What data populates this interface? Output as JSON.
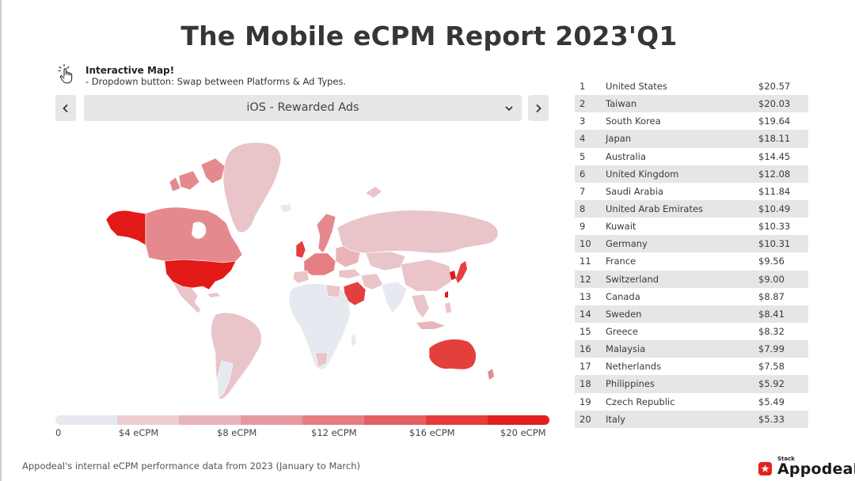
{
  "header": {
    "title": "The Mobile eCPM Report 2023'Q1"
  },
  "hint": {
    "icon": "pointer-hand-icon",
    "title": "Interactive Map!",
    "subtitle": "- Dropdown button: Swap between Platforms & Ad Types."
  },
  "selector": {
    "prev_icon": "chevron-left-icon",
    "next_icon": "chevron-right-icon",
    "dropdown_icon": "chevron-down-icon",
    "selected": "iOS - Rewarded Ads"
  },
  "legend": {
    "labels": [
      "0",
      "$4 eCPM",
      "$8 eCPM",
      "$12 eCPM",
      "$16 eCPM",
      "$20 eCPM"
    ],
    "colors": [
      "#e6e9ef",
      "#eccdd2",
      "#e8b4ba",
      "#e6999f",
      "#e57e82",
      "#e45f60",
      "#e33c3b",
      "#e21f1f"
    ]
  },
  "colors": {
    "no_data": "#e6e9ef",
    "low": "#e9c4c9",
    "mid": "#e48a8f",
    "high": "#e33f3d",
    "top": "#e21a18",
    "brand_red": "#e3231b"
  },
  "ranking": {
    "rows": [
      {
        "rank": "1",
        "country": "United States",
        "value": "$20.57"
      },
      {
        "rank": "2",
        "country": "Taiwan",
        "value": "$20.03"
      },
      {
        "rank": "3",
        "country": "South Korea",
        "value": "$19.64"
      },
      {
        "rank": "4",
        "country": "Japan",
        "value": "$18.11"
      },
      {
        "rank": "5",
        "country": "Australia",
        "value": "$14.45"
      },
      {
        "rank": "6",
        "country": "United Kingdom",
        "value": "$12.08"
      },
      {
        "rank": "7",
        "country": "Saudi Arabia",
        "value": "$11.84"
      },
      {
        "rank": "8",
        "country": "United Arab Emirates",
        "value": "$10.49"
      },
      {
        "rank": "9",
        "country": "Kuwait",
        "value": "$10.33"
      },
      {
        "rank": "10",
        "country": "Germany",
        "value": "$10.31"
      },
      {
        "rank": "11",
        "country": "France",
        "value": "$9.56"
      },
      {
        "rank": "12",
        "country": "Switzerland",
        "value": "$9.00"
      },
      {
        "rank": "13",
        "country": "Canada",
        "value": "$8.87"
      },
      {
        "rank": "14",
        "country": "Sweden",
        "value": "$8.41"
      },
      {
        "rank": "15",
        "country": "Greece",
        "value": "$8.32"
      },
      {
        "rank": "16",
        "country": "Malaysia",
        "value": "$7.99"
      },
      {
        "rank": "17",
        "country": "Netherlands",
        "value": "$7.58"
      },
      {
        "rank": "18",
        "country": "Philippines",
        "value": "$5.92"
      },
      {
        "rank": "19",
        "country": "Czech Republic",
        "value": "$5.49"
      },
      {
        "rank": "20",
        "country": "Italy",
        "value": "$5.33"
      }
    ]
  },
  "footer": {
    "note": "Appodeal's internal eCPM performance data from 2023 (January to March)"
  },
  "brand": {
    "stack": "Stack",
    "name": "Appodeal",
    "icon": "appodeal-logo-icon"
  }
}
